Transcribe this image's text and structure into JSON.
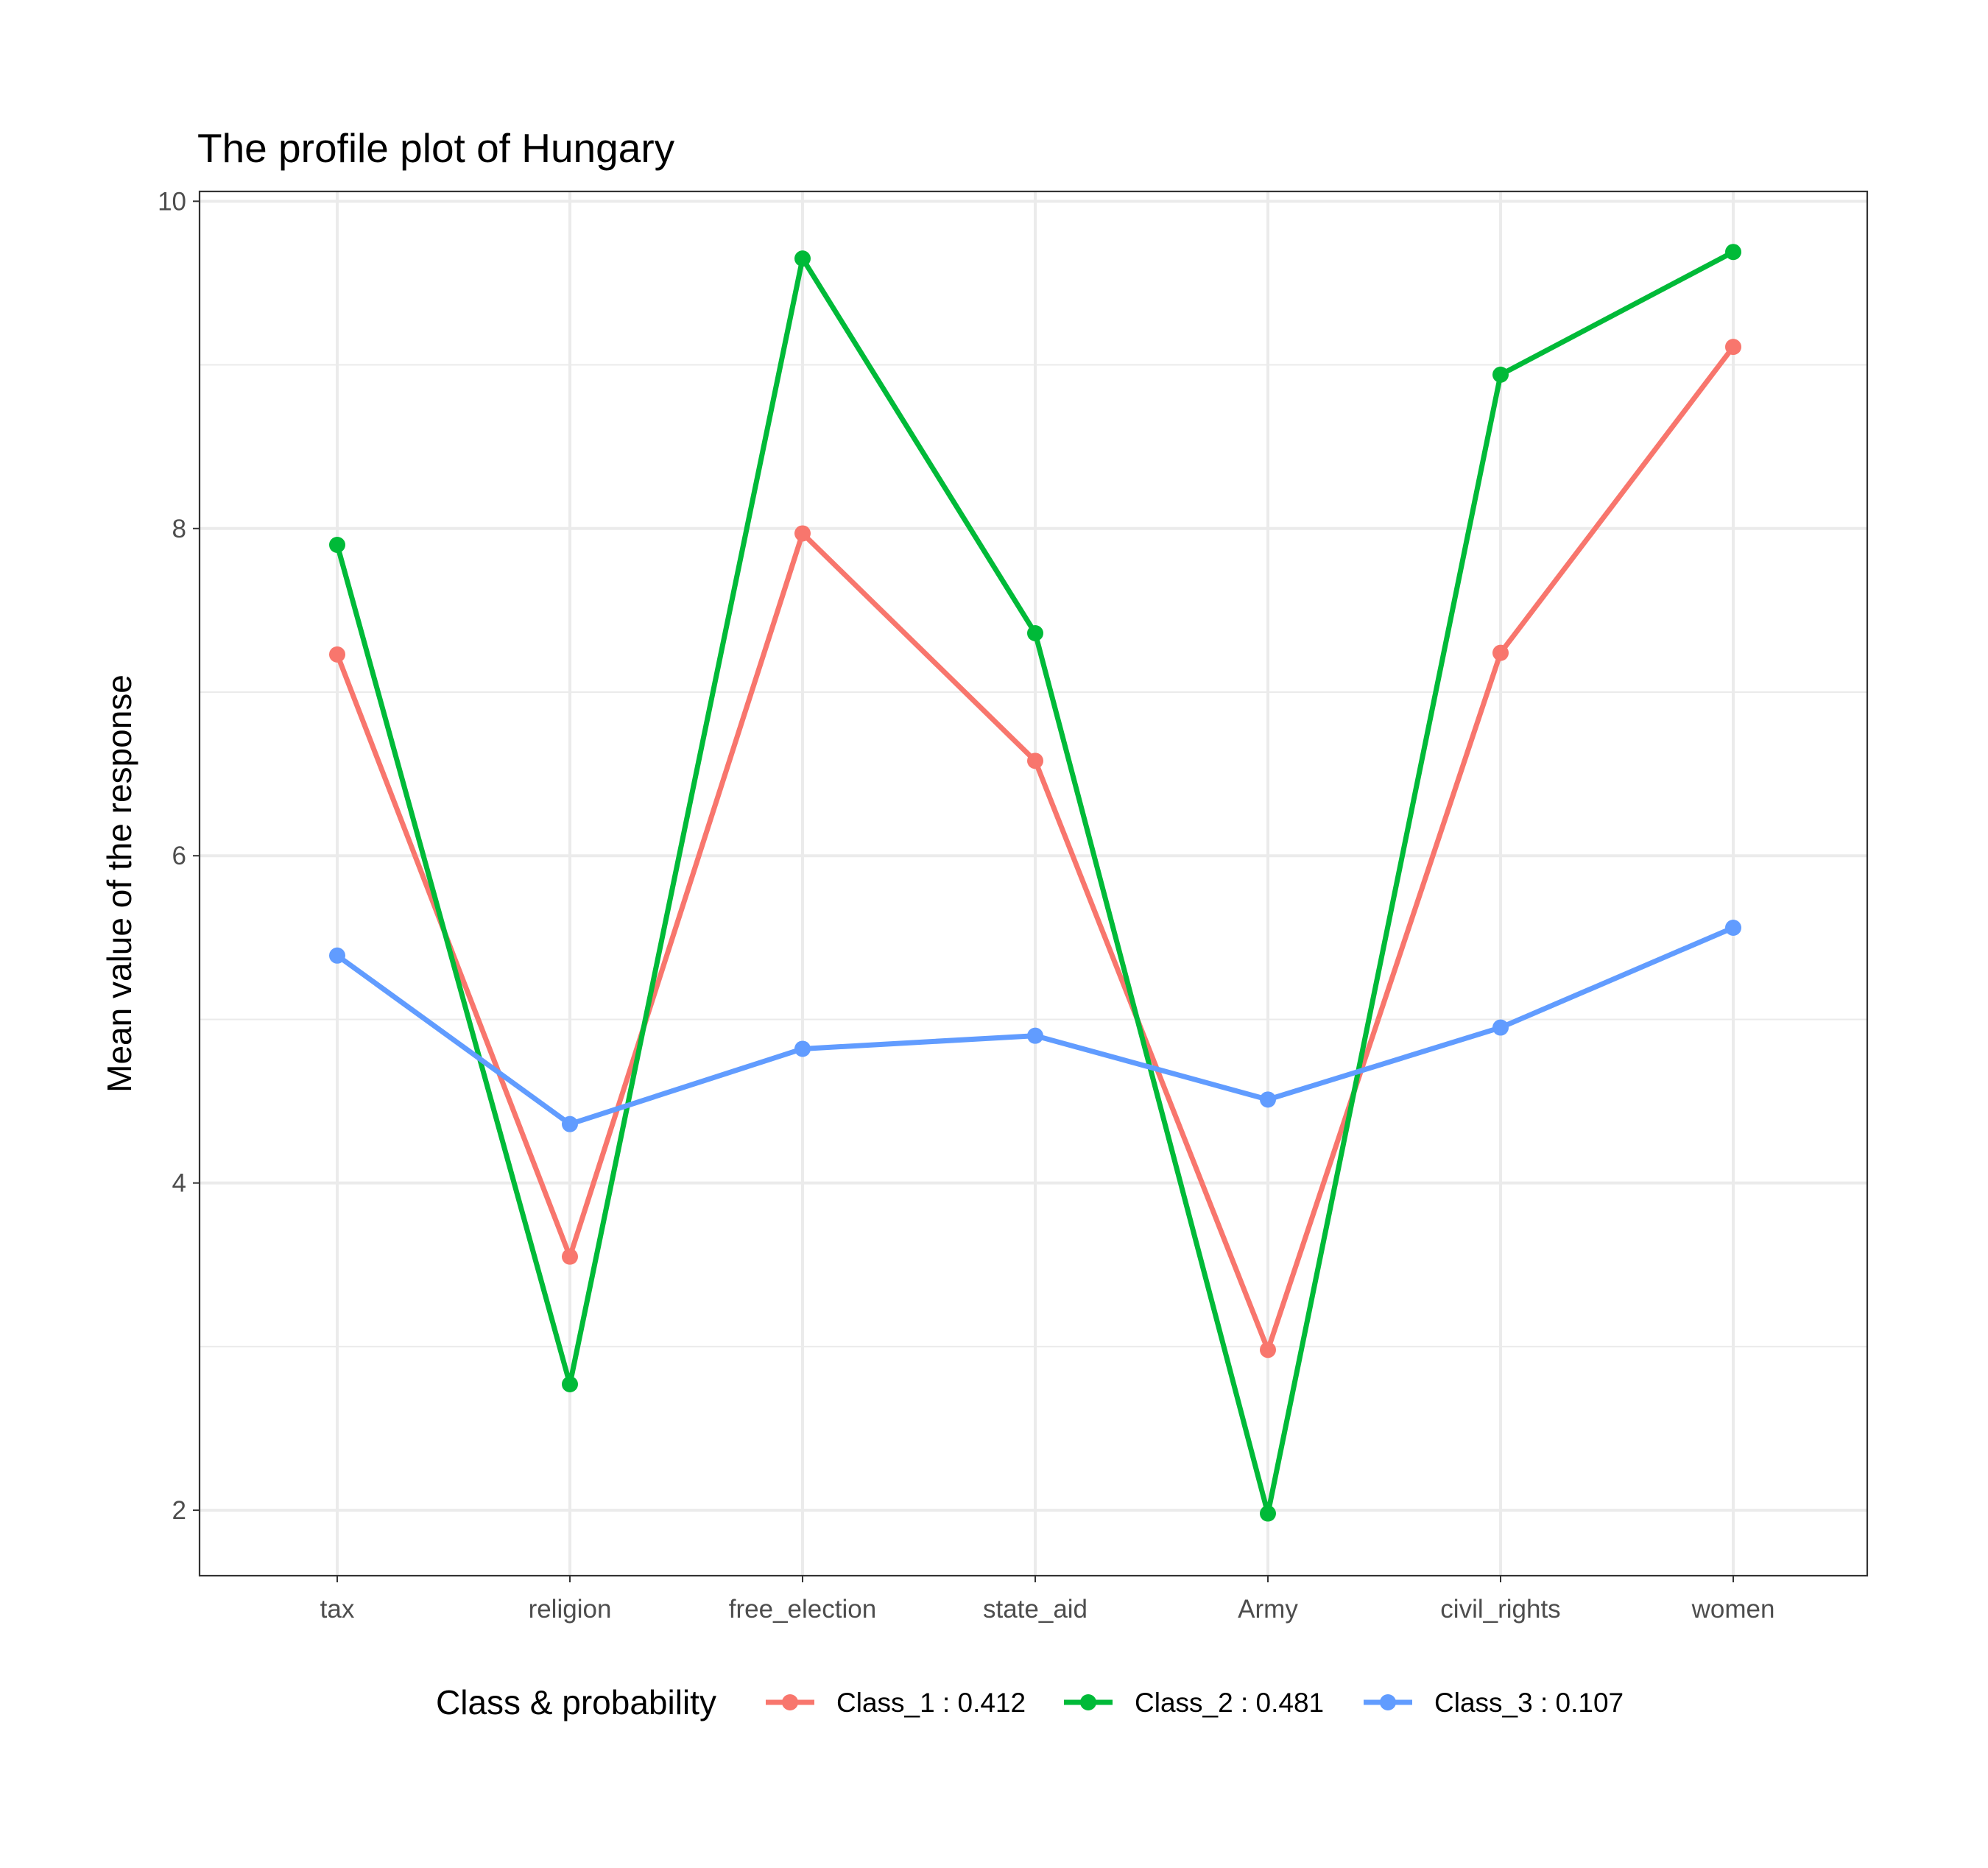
{
  "chart_data": {
    "type": "line",
    "title": "The profile plot of Hungary",
    "xlabel": "",
    "ylabel": "Mean value of the response",
    "categories": [
      "tax",
      "religion",
      "free_election",
      "state_aid",
      "Army",
      "civil_rights",
      "women"
    ],
    "ylim": [
      1.6,
      10.06
    ],
    "y_ticks": [
      2,
      4,
      6,
      8,
      10
    ],
    "y_minor_ticks": [
      3,
      5,
      7,
      9
    ],
    "grid": true,
    "legend": {
      "title": "Class & probability",
      "position": "bottom"
    },
    "series": [
      {
        "name": "Class_1 : 0.412",
        "color": "#F8766D",
        "values": [
          7.23,
          3.55,
          7.97,
          6.58,
          2.98,
          7.24,
          9.11
        ]
      },
      {
        "name": "Class_2 : 0.481",
        "color": "#00BA38",
        "values": [
          7.9,
          2.77,
          9.65,
          7.36,
          1.98,
          8.94,
          9.69
        ]
      },
      {
        "name": "Class_3 : 0.107",
        "color": "#619CFF",
        "values": [
          5.39,
          4.36,
          4.82,
          4.9,
          4.51,
          4.95,
          5.56
        ]
      }
    ]
  }
}
